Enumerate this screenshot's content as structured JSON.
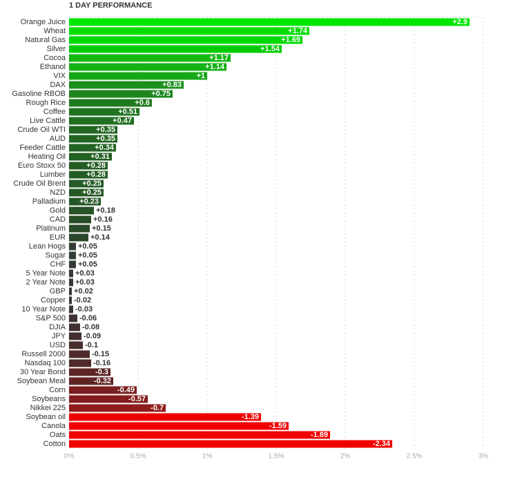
{
  "chart_data": {
    "type": "hbar",
    "title": "1 DAY PERFORMANCE",
    "categories": [
      "Orange Juice",
      "Wheat",
      "Natural Gas",
      "Silver",
      "Cocoa",
      "Ethanol",
      "VIX",
      "DAX",
      "Gasoline RBOB",
      "Rough Rice",
      "Coffee",
      "Live Cattle",
      "Crude Oil WTI",
      "AUD",
      "Feeder Cattle",
      "Heating Oil",
      "Euro Stoxx 50",
      "Lumber",
      "Crude Oil Brent",
      "NZD",
      "Palladium",
      "Gold",
      "CAD",
      "Platinum",
      "EUR",
      "Lean Hogs",
      "Sugar",
      "CHF",
      "5 Year Note",
      "2 Year Note",
      "GBP",
      "Copper",
      "10 Year Note",
      "S&P 500",
      "DJIA",
      "JPY",
      "USD",
      "Russell 2000",
      "Nasdaq 100",
      "30 Year Bond",
      "Soybean Meal",
      "Corn",
      "Soybeans",
      "Nikkei 225",
      "Soybean oil",
      "Canola",
      "Oats",
      "Cotton"
    ],
    "values": [
      2.9,
      1.74,
      1.69,
      1.54,
      1.17,
      1.14,
      1,
      0.83,
      0.75,
      0.6,
      0.51,
      0.47,
      0.35,
      0.35,
      0.34,
      0.31,
      0.28,
      0.28,
      0.25,
      0.25,
      0.23,
      0.18,
      0.16,
      0.15,
      0.14,
      0.05,
      0.05,
      0.05,
      0.03,
      0.03,
      0.02,
      -0.02,
      -0.03,
      -0.06,
      -0.08,
      -0.09,
      -0.1,
      -0.15,
      -0.16,
      -0.3,
      -0.32,
      -0.49,
      -0.57,
      -0.7,
      -1.39,
      -1.59,
      -1.89,
      -2.34
    ],
    "value_labels": [
      "+2.9",
      "+1.74",
      "+1.69",
      "+1.54",
      "+1.17",
      "+1.14",
      "+1",
      "+0.83",
      "+0.75",
      "+0.6",
      "+0.51",
      "+0.47",
      "+0.35",
      "+0.35",
      "+0.34",
      "+0.31",
      "+0.28",
      "+0.28",
      "+0.25",
      "+0.25",
      "+0.23",
      "+0.18",
      "+0.16",
      "+0.15",
      "+0.14",
      "+0.05",
      "+0.05",
      "+0.05",
      "+0.03",
      "+0.03",
      "+0.02",
      "-0.02",
      "-0.03",
      "-0.06",
      "-0.08",
      "-0.09",
      "-0.1",
      "-0.15",
      "-0.16",
      "-0.3",
      "-0.32",
      "-0.49",
      "-0.57",
      "-0.7",
      "-1.39",
      "-1.59",
      "-1.89",
      "-2.34"
    ],
    "colors": [
      "#00e600",
      "#00dd00",
      "#00d900",
      "#00cc00",
      "#13b813",
      "#14b014",
      "#17a817",
      "#1c8f1c",
      "#1d851d",
      "#1e7a1e",
      "#1f731f",
      "#206f20",
      "#226522",
      "#226522",
      "#236323",
      "#236023",
      "#245d24",
      "#245d24",
      "#255a25",
      "#255a25",
      "#265726",
      "#275127",
      "#284e28",
      "#294a29",
      "#2a472a",
      "#333d33",
      "#333d33",
      "#333d33",
      "#353a35",
      "#353a35",
      "#363836",
      "#383636",
      "#383636",
      "#3d3333",
      "#423030",
      "#442f2f",
      "#472d2d",
      "#4e2a2a",
      "#4e2a2a",
      "#5c2525",
      "#602424",
      "#7a1f1f",
      "#851d1d",
      "#8f1c1c",
      "#ee0000",
      "#f00000",
      "#f00000",
      "#f00000"
    ],
    "xlim": [
      0,
      3
    ],
    "xticks": [
      {
        "value": 0,
        "label": "0%"
      },
      {
        "value": 0.5,
        "label": "0.5%"
      },
      {
        "value": 1,
        "label": "1%"
      },
      {
        "value": 1.5,
        "label": "1.5%"
      },
      {
        "value": 2,
        "label": "2%"
      },
      {
        "value": 2.5,
        "label": "2.5%"
      },
      {
        "value": 3,
        "label": "3%"
      }
    ],
    "grid": true
  }
}
